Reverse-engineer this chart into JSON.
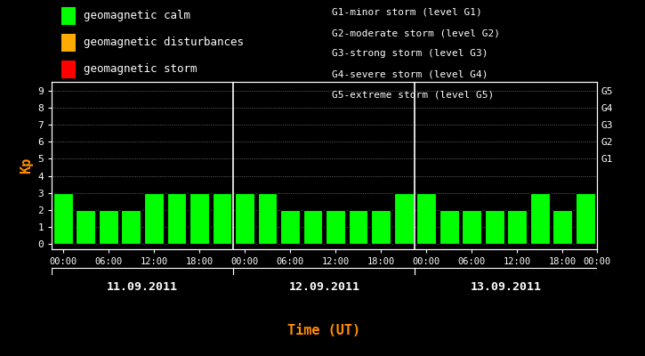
{
  "bg_color": "#000000",
  "plot_bg_color": "#000000",
  "bar_color": "#00ff00",
  "grid_color": "#ffffff",
  "text_color": "#ffffff",
  "kp_label_color": "#ff8c00",
  "xlabel_color": "#ff8c00",
  "xlabel": "Time (UT)",
  "ylabel": "Kp",
  "ylim": [
    0,
    9
  ],
  "yticks": [
    0,
    1,
    2,
    3,
    4,
    5,
    6,
    7,
    8,
    9
  ],
  "days": [
    "11.09.2011",
    "12.09.2011",
    "13.09.2011"
  ],
  "kp_values": [
    3,
    2,
    2,
    2,
    3,
    3,
    3,
    3,
    3,
    3,
    2,
    2,
    2,
    2,
    2,
    3,
    3,
    2,
    2,
    2,
    2,
    3,
    2,
    3
  ],
  "legend_items": [
    {
      "label": "geomagnetic calm",
      "color": "#00ff00"
    },
    {
      "label": "geomagnetic disturbances",
      "color": "#ffaa00"
    },
    {
      "label": "geomagnetic storm",
      "color": "#ff0000"
    }
  ],
  "right_labels": [
    {
      "y": 5,
      "text": "G1"
    },
    {
      "y": 6,
      "text": "G2"
    },
    {
      "y": 7,
      "text": "G3"
    },
    {
      "y": 8,
      "text": "G4"
    },
    {
      "y": 9,
      "text": "G5"
    }
  ],
  "right_legend": [
    "G1-minor storm (level G1)",
    "G2-moderate storm (level G2)",
    "G3-strong storm (level G3)",
    "G4-severe storm (level G4)",
    "G5-extreme storm (level G5)"
  ],
  "bar_width": 0.85,
  "day_separator_color": "#ffffff",
  "tick_color": "#ffffff",
  "spine_color": "#ffffff",
  "fig_width": 7.25,
  "fig_height": 4.0,
  "dpi": 100
}
